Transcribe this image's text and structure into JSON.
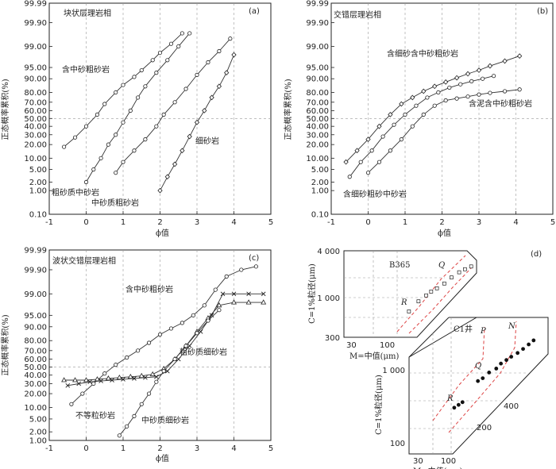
{
  "chart_data": [
    {
      "panel_label": "(a)",
      "type": "line",
      "title": "块状层理岩相",
      "xlabel": "ϕ值",
      "ylabel": "正态概率累积(%)",
      "xlim": [
        -1,
        5
      ],
      "y_ticks": [
        "0.10",
        "1.00",
        "2.00",
        "5.00",
        "10.00",
        "20.00",
        "30.00",
        "40.00",
        "50.00",
        "60.00",
        "70.00",
        "80.00",
        "90.00",
        "95.00",
        "99.00",
        "99.90",
        "99.99"
      ],
      "x_ticks": [
        "-1",
        "0",
        "1",
        "2",
        "3",
        "4",
        "5"
      ],
      "grid": "dashed",
      "series": [
        {
          "name": "含中砂粗砂岩",
          "marker": "circle",
          "points": [
            [
              -0.6,
              18
            ],
            [
              -0.3,
              27
            ],
            [
              0,
              40
            ],
            [
              0.3,
              55
            ],
            [
              0.5,
              68
            ],
            [
              0.8,
              80
            ],
            [
              1.0,
              86
            ],
            [
              1.3,
              91
            ],
            [
              1.5,
              94
            ],
            [
              1.8,
              97
            ],
            [
              2.0,
              98.3
            ],
            [
              2.3,
              99.2
            ],
            [
              2.6,
              99.7
            ]
          ]
        },
        {
          "name": "粗砂质中砂岩",
          "marker": "circle",
          "points": [
            [
              0,
              2
            ],
            [
              0.2,
              5
            ],
            [
              0.4,
              10
            ],
            [
              0.6,
              20
            ],
            [
              0.8,
              30
            ],
            [
              1.0,
              45
            ],
            [
              1.2,
              60
            ],
            [
              1.4,
              75
            ],
            [
              1.6,
              85
            ],
            [
              1.9,
              93
            ],
            [
              2.2,
              97
            ],
            [
              2.5,
              99
            ],
            [
              2.8,
              99.7
            ]
          ]
        },
        {
          "name": "中砂质粗砂岩",
          "marker": "circle",
          "points": [
            [
              0.8,
              4
            ],
            [
              1.0,
              8
            ],
            [
              1.3,
              15
            ],
            [
              1.6,
              25
            ],
            [
              1.9,
              40
            ],
            [
              2.1,
              55
            ],
            [
              2.4,
              70
            ],
            [
              2.7,
              83
            ],
            [
              3.0,
              92
            ],
            [
              3.3,
              96.5
            ],
            [
              3.6,
              98.5
            ],
            [
              3.9,
              99.5
            ]
          ]
        },
        {
          "name": "细砂岩",
          "marker": "diamond",
          "points": [
            [
              2.0,
              1
            ],
            [
              2.2,
              3
            ],
            [
              2.4,
              7
            ],
            [
              2.6,
              15
            ],
            [
              2.8,
              28
            ],
            [
              3.0,
              45
            ],
            [
              3.2,
              60
            ],
            [
              3.4,
              75
            ],
            [
              3.6,
              85
            ],
            [
              3.8,
              93
            ],
            [
              4.0,
              98
            ]
          ]
        }
      ]
    },
    {
      "panel_label": "(b)",
      "type": "line",
      "title": "交错层理岩相",
      "xlabel": "ϕ值",
      "ylabel": "正态概率累积(%)",
      "xlim": [
        -1,
        5
      ],
      "y_ticks": [
        "0.10",
        "1.00",
        "2.00",
        "5.00",
        "10.00",
        "20.00",
        "30.00",
        "40.00",
        "50.00",
        "60.00",
        "70.00",
        "80.00",
        "90.00",
        "95.00",
        "99.00",
        "99.90",
        "99.99"
      ],
      "x_ticks": [
        "-1",
        "0",
        "1",
        "2",
        "3",
        "4",
        "5"
      ],
      "grid": "dashed",
      "series": [
        {
          "name": "含细砂含中砂粗砂岩",
          "marker": "diamond",
          "points": [
            [
              -0.6,
              8
            ],
            [
              -0.3,
              15
            ],
            [
              0,
              25
            ],
            [
              0.3,
              40
            ],
            [
              0.6,
              55
            ],
            [
              0.9,
              68
            ],
            [
              1.2,
              75
            ],
            [
              1.5,
              81
            ],
            [
              1.8,
              85
            ],
            [
              2.1,
              88
            ],
            [
              2.4,
              90.5
            ],
            [
              2.7,
              92.5
            ],
            [
              3.0,
              94
            ],
            [
              3.3,
              95.5
            ],
            [
              3.7,
              96.8
            ],
            [
              4.1,
              97.8
            ]
          ]
        },
        {
          "name": "含细砂粗砂中砂岩",
          "marker": "circle",
          "points": [
            [
              -0.5,
              3
            ],
            [
              -0.2,
              8
            ],
            [
              0.1,
              15
            ],
            [
              0.4,
              28
            ],
            [
              0.7,
              42
            ],
            [
              1.0,
              55
            ],
            [
              1.3,
              66
            ],
            [
              1.6,
              75
            ],
            [
              1.9,
              80
            ],
            [
              2.2,
              84
            ],
            [
              2.5,
              86.5
            ],
            [
              2.8,
              88.5
            ],
            [
              3.1,
              90
            ],
            [
              3.4,
              91.5
            ]
          ]
        },
        {
          "name": "含泥含中砂粗砂岩",
          "marker": "circle",
          "points": [
            [
              0,
              4
            ],
            [
              0.3,
              8
            ],
            [
              0.6,
              15
            ],
            [
              0.9,
              25
            ],
            [
              1.2,
              40
            ],
            [
              1.5,
              55
            ],
            [
              1.8,
              66
            ],
            [
              2.1,
              72
            ],
            [
              2.4,
              74
            ],
            [
              2.7,
              76
            ],
            [
              3.0,
              78
            ],
            [
              3.3,
              79.5
            ],
            [
              3.7,
              81
            ],
            [
              4.1,
              82.5
            ]
          ]
        }
      ]
    },
    {
      "panel_label": "(c)",
      "type": "line",
      "title": "波状交错层理岩相",
      "xlabel": "ϕ值",
      "ylabel": "正态概率累积(%)",
      "xlim": [
        -1,
        5
      ],
      "y_ticks": [
        "1.00",
        "2.00",
        "5.00",
        "10.00",
        "20.00",
        "30.00",
        "40.00",
        "50.00",
        "60.00",
        "70.00",
        "80.00",
        "90.00",
        "95.00",
        "99.00",
        "99.90",
        "99.99"
      ],
      "x_ticks": [
        "-1",
        "0",
        "1",
        "2",
        "3",
        "4",
        "5"
      ],
      "grid": "dashed",
      "series": [
        {
          "name": "含中砂粗砂岩",
          "marker": "circle",
          "points": [
            [
              -0.4,
              12
            ],
            [
              -0.1,
              20
            ],
            [
              0.2,
              30
            ],
            [
              0.5,
              42
            ],
            [
              0.8,
              53
            ],
            [
              1.1,
              62
            ],
            [
              1.4,
              70
            ],
            [
              1.7,
              78
            ],
            [
              2.0,
              85
            ],
            [
              2.3,
              89
            ],
            [
              2.6,
              92
            ],
            [
              2.9,
              95
            ],
            [
              3.2,
              97.5
            ],
            [
              3.5,
              99.3
            ],
            [
              3.8,
              99.8
            ],
            [
              4.2,
              99.9
            ],
            [
              4.6,
              99.93
            ]
          ]
        },
        {
          "name": "不等粒砂岩",
          "marker": "triangle",
          "points": [
            [
              -0.6,
              34
            ],
            [
              -0.3,
              34
            ],
            [
              0,
              34
            ],
            [
              0.3,
              35
            ],
            [
              0.6,
              36
            ],
            [
              0.9,
              37
            ],
            [
              1.2,
              38
            ],
            [
              1.5,
              39
            ],
            [
              1.8,
              41
            ],
            [
              2.1,
              48
            ],
            [
              2.4,
              60
            ],
            [
              2.7,
              75
            ],
            [
              3.0,
              87
            ],
            [
              3.3,
              94
            ],
            [
              3.6,
              97.5
            ],
            [
              4.0,
              98
            ],
            [
              4.4,
              98
            ],
            [
              4.8,
              98
            ]
          ]
        },
        {
          "name": "粗砂质细砂岩",
          "marker": "cross",
          "points": [
            [
              -0.5,
              28
            ],
            [
              -0.2,
              30
            ],
            [
              0.1,
              32
            ],
            [
              0.4,
              33
            ],
            [
              0.7,
              34
            ],
            [
              1.0,
              35
            ],
            [
              1.3,
              36
            ],
            [
              1.6,
              37
            ],
            [
              1.9,
              38
            ],
            [
              2.2,
              45
            ],
            [
              2.5,
              60
            ],
            [
              2.8,
              75
            ],
            [
              3.1,
              87
            ],
            [
              3.4,
              95
            ],
            [
              3.7,
              99
            ],
            [
              4.0,
              99
            ],
            [
              4.4,
              99
            ],
            [
              4.8,
              99
            ]
          ]
        },
        {
          "name": "中砂质细砂岩",
          "marker": "circle",
          "points": [
            [
              0.9,
              1.5
            ],
            [
              1.1,
              3
            ],
            [
              1.3,
              6
            ],
            [
              1.5,
              12
            ],
            [
              1.7,
              20
            ],
            [
              1.9,
              32
            ],
            [
              2.1,
              45
            ],
            [
              2.4,
              60
            ],
            [
              2.7,
              75
            ],
            [
              3.0,
              86
            ],
            [
              3.3,
              93
            ],
            [
              3.6,
              96.5
            ]
          ]
        }
      ]
    },
    {
      "panel_label": "(d)",
      "type": "scatter",
      "subplots": [
        {
          "name": "B365",
          "xlabel": "M=中值(μm)",
          "ylabel": "C=1%粒径(μm)",
          "x_ticks": [
            "30",
            "100"
          ],
          "y_ticks": [
            "300",
            "1 000",
            "4 000"
          ],
          "segment_labels": [
            "Q",
            "R"
          ],
          "points": [
            [
              150,
              650
            ],
            [
              190,
              880
            ],
            [
              230,
              1050
            ],
            [
              260,
              1180
            ],
            [
              300,
              1300
            ],
            [
              360,
              1500
            ],
            [
              430,
              1800
            ],
            [
              520,
              2100
            ],
            [
              600,
              2300
            ],
            [
              700,
              2500
            ]
          ]
        },
        {
          "name": "C1井",
          "xlabel": "M=中值(μm)",
          "ylabel": "C=1%粒径(μm)",
          "x_ticks": [
            "30",
            "100"
          ],
          "y_ticks": [
            "100",
            "1 000"
          ],
          "extra_ticks": [
            "200",
            "400"
          ],
          "segment_labels": [
            "P",
            "N",
            "Q",
            "R"
          ],
          "points": [
            [
              90,
              260
            ],
            [
              100,
              280
            ],
            [
              110,
              300
            ],
            [
              160,
              520
            ],
            [
              180,
              560
            ],
            [
              210,
              650
            ],
            [
              250,
              720
            ],
            [
              280,
              820
            ],
            [
              320,
              900
            ],
            [
              360,
              980
            ],
            [
              420,
              1080
            ],
            [
              480,
              1200
            ],
            [
              550,
              1350
            ],
            [
              620,
              1500
            ]
          ]
        }
      ]
    }
  ],
  "labels": {
    "a_title": "块状层理岩相",
    "b_title": "交错层理岩相",
    "c_title": "波状交错层理岩相",
    "a_s1": "含中砂粗砂岩",
    "a_s2": "粗砂质中砂岩",
    "a_s3": "中砂质粗砂岩",
    "a_s4": "细砂岩",
    "b_s1": "含细砂含中砂粗砂岩",
    "b_s2": "含细砂粗砂中砂岩",
    "b_s3": "含泥含中砂粗砂岩",
    "c_s1": "含中砂粗砂岩",
    "c_s2": "不等粒砂岩",
    "c_s3": "粗砂质细砂岩",
    "c_s4": "中砂质细砂岩",
    "xlabel": "ϕ值",
    "ylabel": "正态概率累积(%)",
    "pa": "(a)",
    "pb": "(b)",
    "pc": "(c)",
    "pd": "(d)",
    "d_top_name": "B365",
    "d_bot_name": "C1井",
    "d_xlabel": "M=中值(μm)",
    "d_ylabel": "C=1%粒径(μm)",
    "d_t_4000": "4 000",
    "d_t_1000": "1 000",
    "d_t_300": "300",
    "d_t_30": "30",
    "d_t_100": "100",
    "d_b_1000": "1 000",
    "d_b_100": "100",
    "d_b_30": "30",
    "d_b_100x": "100",
    "d_b_200": "200",
    "d_b_400": "400",
    "Q1": "Q",
    "R1": "R",
    "P2": "P",
    "N2": "N",
    "Q2": "Q",
    "R2": "R"
  }
}
